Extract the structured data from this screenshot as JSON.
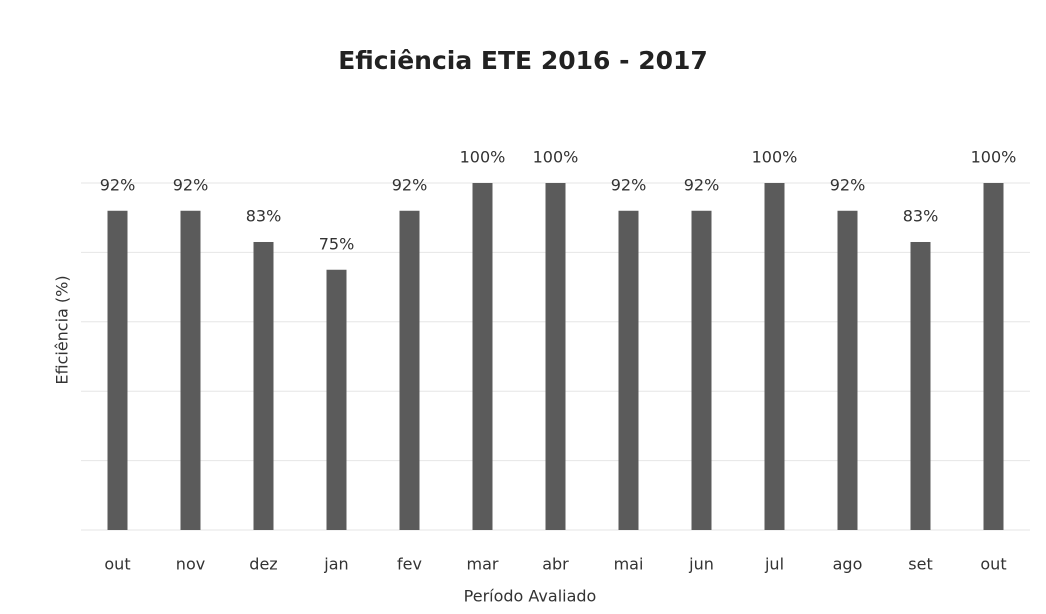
{
  "chart_data": {
    "type": "bar",
    "title": "Eficiência ETE 2016 - 2017",
    "x_label": "Período Avaliado",
    "y_label": "Eficiência (%)",
    "categories": [
      "out",
      "nov",
      "dez",
      "jan",
      "fev",
      "mar",
      "abr",
      "mai",
      "jun",
      "jul",
      "ago",
      "set",
      "out"
    ],
    "values": [
      92,
      92,
      83,
      75,
      92,
      100,
      100,
      92,
      92,
      100,
      92,
      83,
      100
    ],
    "value_labels": [
      "92%",
      "92%",
      "83%",
      "75%",
      "92%",
      "100%",
      "100%",
      "92%",
      "92%",
      "100%",
      "92%",
      "83%",
      "100%"
    ],
    "color": "#5b5b5b",
    "ylim": [
      0,
      100
    ],
    "yticks": [
      0,
      20,
      40,
      60,
      80,
      100
    ],
    "grid": true
  }
}
